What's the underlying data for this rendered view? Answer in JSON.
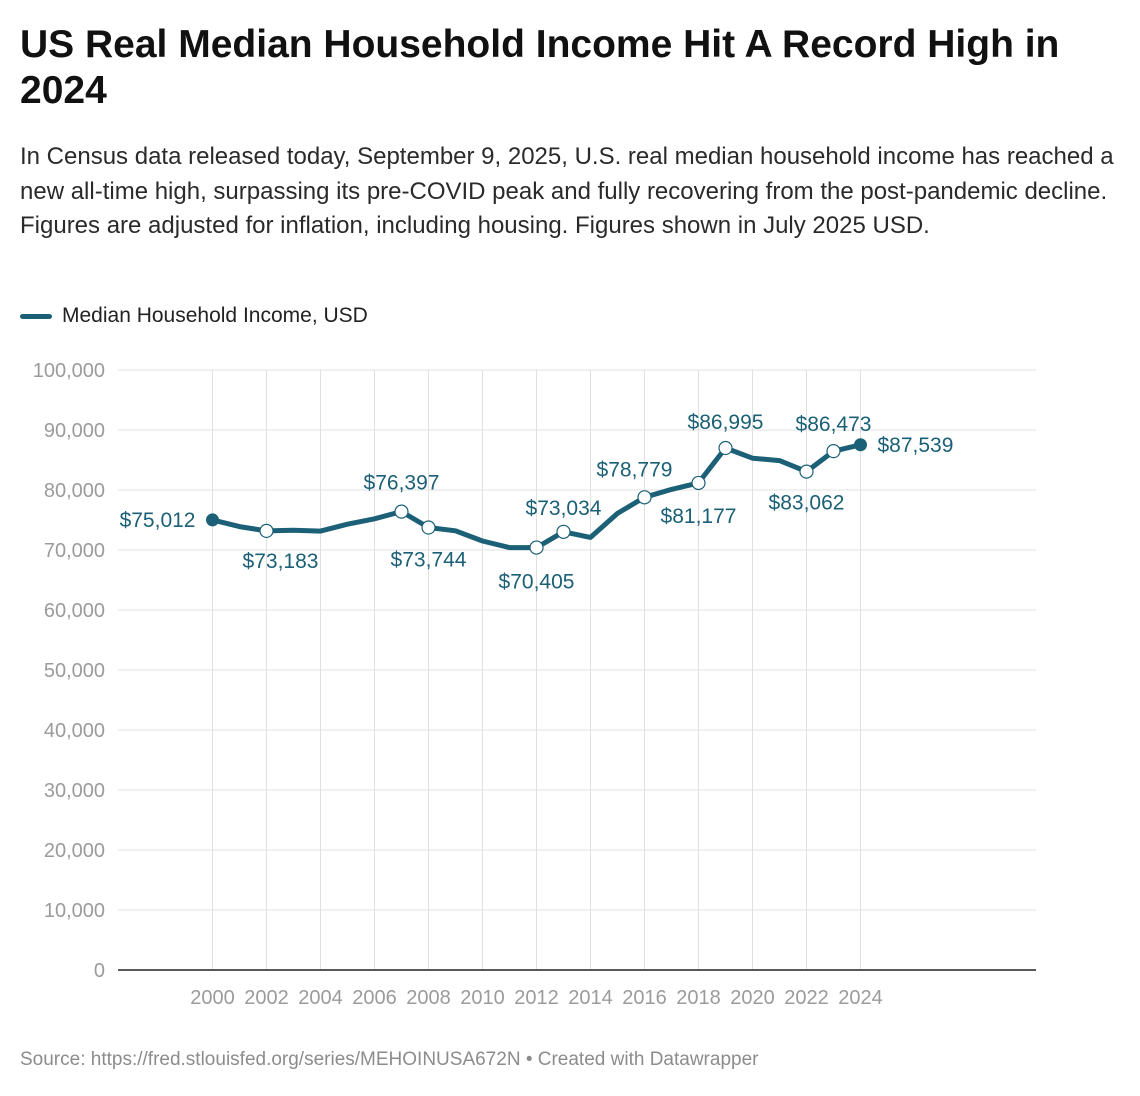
{
  "header": {
    "title": "US Real Median Household Income Hit A Record High in 2024",
    "description": "In Census data released today, September 9, 2025, U.S. real median household income has reached a new all-time high, surpassing its pre-COVID peak and fully recovering from the post-pandemic decline. Figures are adjusted for inflation, including housing. Figures shown in July 2025 USD."
  },
  "footer": {
    "source": "Source: https://fred.stlouisfed.org/series/MEHOINUSA672N • Created with Datawrapper"
  },
  "colors": {
    "line": "#1b6076",
    "grid": "#e0e0e0",
    "axis_text": "#9b9b9b",
    "label_text": "#1b6076"
  },
  "chart_data": {
    "type": "line",
    "title": "US Real Median Household Income Hit A Record High in 2024",
    "ylim": [
      0,
      100000
    ],
    "xlim": [
      1996.5,
      2030.5
    ],
    "grid": "on",
    "legend_placement": "top-left",
    "yticks": [
      0,
      10000,
      20000,
      30000,
      40000,
      50000,
      60000,
      70000,
      80000,
      90000,
      100000
    ],
    "ytick_labels": [
      "0",
      "10,000",
      "20,000",
      "30,000",
      "40,000",
      "50,000",
      "60,000",
      "70,000",
      "80,000",
      "90,000",
      "100,000"
    ],
    "xticks": [
      2000,
      2002,
      2004,
      2006,
      2008,
      2010,
      2012,
      2014,
      2016,
      2018,
      2020,
      2022,
      2024
    ],
    "xtick_labels": [
      "2000",
      "2002",
      "2004",
      "2006",
      "2008",
      "2010",
      "2012",
      "2014",
      "2016",
      "2018",
      "2020",
      "2022",
      "2024"
    ],
    "series": [
      {
        "name": "Median Household Income, USD",
        "x": [
          2000,
          2001,
          2002,
          2003,
          2004,
          2005,
          2006,
          2007,
          2008,
          2009,
          2010,
          2011,
          2012,
          2013,
          2014,
          2015,
          2016,
          2017,
          2018,
          2019,
          2020,
          2021,
          2022,
          2023,
          2024
        ],
        "y": [
          75012,
          73900,
          73183,
          73300,
          73150,
          74300,
          75200,
          76397,
          73744,
          73200,
          71500,
          70400,
          70405,
          73034,
          72100,
          76100,
          78779,
          80100,
          81177,
          86995,
          85300,
          84900,
          83062,
          86473,
          87539
        ]
      }
    ],
    "annotations": [
      {
        "x": 2000,
        "y": 75012,
        "label": "$75,012"
      },
      {
        "x": 2002,
        "y": 73183,
        "label": "$73,183"
      },
      {
        "x": 2007,
        "y": 76397,
        "label": "$76,397"
      },
      {
        "x": 2008,
        "y": 73744,
        "label": "$73,744"
      },
      {
        "x": 2012,
        "y": 70405,
        "label": "$70,405"
      },
      {
        "x": 2013,
        "y": 73034,
        "label": "$73,034"
      },
      {
        "x": 2016,
        "y": 78779,
        "label": "$78,779"
      },
      {
        "x": 2018,
        "y": 81177,
        "label": "$81,177"
      },
      {
        "x": 2019,
        "y": 86995,
        "label": "$86,995"
      },
      {
        "x": 2022,
        "y": 83062,
        "label": "$83,062"
      },
      {
        "x": 2023,
        "y": 86473,
        "label": "$86,473"
      },
      {
        "x": 2024,
        "y": 87539,
        "label": "$87,539"
      }
    ]
  }
}
